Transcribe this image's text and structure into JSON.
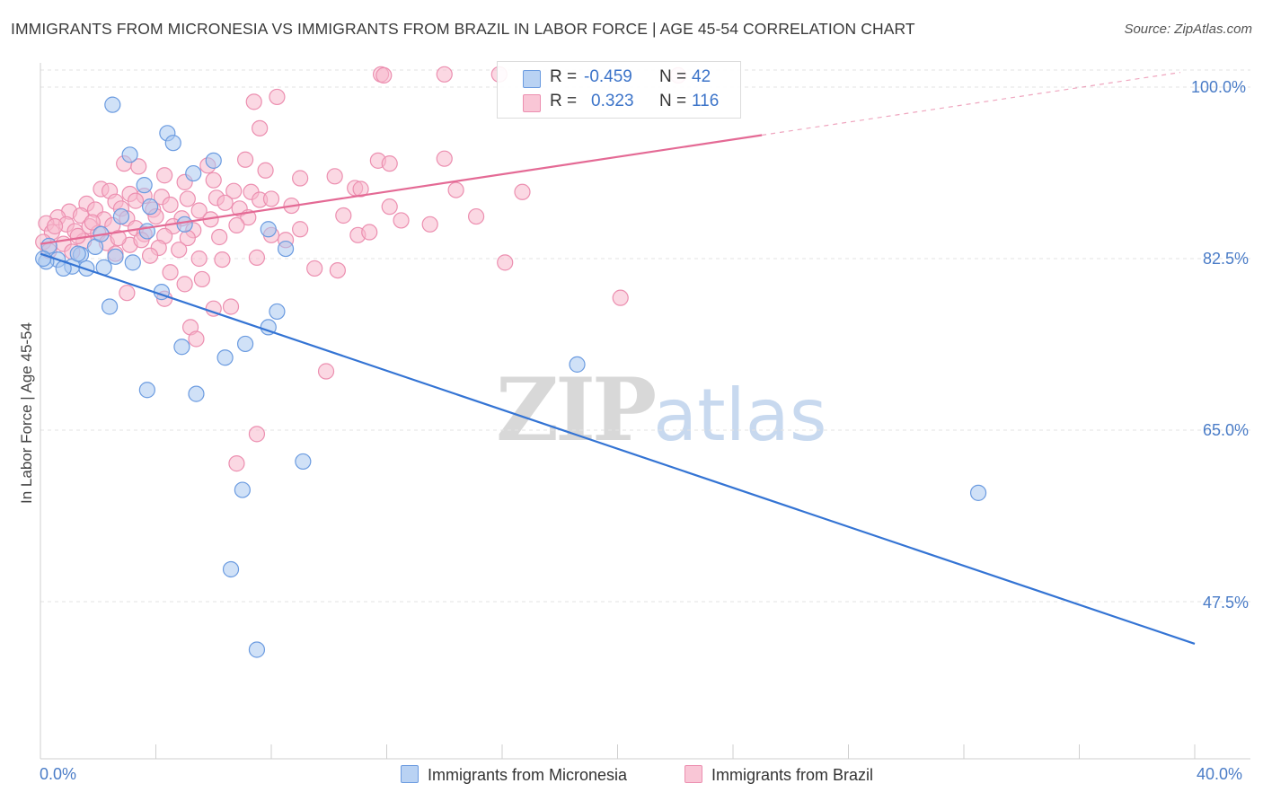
{
  "title": "IMMIGRANTS FROM MICRONESIA VS IMMIGRANTS FROM BRAZIL IN LABOR FORCE | AGE 45-54 CORRELATION CHART",
  "source": "Source: ZipAtlas.com",
  "watermark": {
    "zip": "ZIP",
    "atlas": "atlas"
  },
  "colors": {
    "micronesia_fill": "#aac8f0",
    "micronesia_stroke": "#6b9be0",
    "micronesia_line": "#3474d4",
    "brazil_fill": "#f7b8cc",
    "brazil_stroke": "#ec8fb0",
    "brazil_line": "#e46a95",
    "tick_label": "#4a7cc7",
    "grid": "#e3e3e3"
  },
  "legend_top": {
    "rows": [
      {
        "r_key": "R =",
        "r_value": "-0.459",
        "n_key": "N =",
        "n_value": "42"
      },
      {
        "r_key": "R =",
        "r_value": "0.323",
        "n_key": "N =",
        "n_value": "116"
      }
    ]
  },
  "chart_data": {
    "type": "scatter",
    "title": "IMMIGRANTS FROM MICRONESIA VS IMMIGRANTS FROM BRAZIL IN LABOR FORCE | AGE 45-54 CORRELATION CHART",
    "xlabel": "",
    "ylabel": "In Labor Force | Age 45-54",
    "xlim": [
      0,
      40
    ],
    "ylim": [
      32.5,
      102
    ],
    "x_tick_labels": [
      "0.0%",
      "40.0%"
    ],
    "y_ticks": [
      47.5,
      65.0,
      82.5,
      100.0
    ],
    "y_tick_labels": [
      "47.5%",
      "65.0%",
      "82.5%",
      "100.0%"
    ],
    "grid": true,
    "legend_position": "bottom",
    "series": [
      {
        "name": "Immigrants from Micronesia",
        "r": -0.459,
        "n": 42,
        "trend": {
          "x": [
            0,
            40
          ],
          "y": [
            83.0,
            43.2
          ],
          "dashed_x": null
        },
        "points": [
          [
            2.5,
            98.2
          ],
          [
            4.4,
            95.3
          ],
          [
            3.1,
            93.1
          ],
          [
            4.6,
            94.3
          ],
          [
            6.0,
            92.5
          ],
          [
            5.3,
            91.2
          ],
          [
            3.6,
            90.0
          ],
          [
            3.8,
            87.8
          ],
          [
            2.8,
            86.8
          ],
          [
            7.9,
            85.5
          ],
          [
            3.7,
            85.3
          ],
          [
            0.3,
            83.8
          ],
          [
            1.9,
            83.7
          ],
          [
            8.5,
            83.5
          ],
          [
            0.6,
            82.4
          ],
          [
            0.2,
            82.2
          ],
          [
            2.6,
            82.7
          ],
          [
            1.4,
            82.9
          ],
          [
            1.1,
            81.7
          ],
          [
            0.8,
            81.5
          ],
          [
            1.6,
            81.5
          ],
          [
            2.2,
            81.6
          ],
          [
            3.2,
            82.1
          ],
          [
            4.2,
            79.1
          ],
          [
            2.4,
            77.6
          ],
          [
            8.2,
            77.1
          ],
          [
            7.9,
            75.5
          ],
          [
            4.9,
            73.5
          ],
          [
            7.1,
            73.8
          ],
          [
            6.4,
            72.4
          ],
          [
            18.6,
            71.7
          ],
          [
            3.7,
            69.1
          ],
          [
            5.4,
            68.7
          ],
          [
            9.1,
            61.8
          ],
          [
            7.0,
            58.9
          ],
          [
            32.5,
            58.6
          ],
          [
            6.6,
            50.8
          ],
          [
            7.5,
            42.6
          ],
          [
            0.1,
            82.5
          ],
          [
            1.3,
            83.0
          ],
          [
            5.0,
            86.0
          ],
          [
            2.1,
            85.0
          ]
        ]
      },
      {
        "name": "Immigrants from Brazil",
        "r": 0.323,
        "n": 116,
        "trend": {
          "x": [
            0,
            25
          ],
          "y": [
            84.0,
            95.1
          ],
          "dashed_x": [
            25,
            39.5
          ],
          "dashed_y": [
            95.1,
            101.5
          ]
        },
        "points": [
          [
            11.8,
            101.3
          ],
          [
            11.9,
            101.2
          ],
          [
            14.0,
            101.3
          ],
          [
            15.9,
            101.3
          ],
          [
            22.1,
            101.2
          ],
          [
            8.2,
            99.0
          ],
          [
            7.4,
            98.5
          ],
          [
            7.6,
            95.8
          ],
          [
            11.7,
            92.5
          ],
          [
            14.0,
            92.7
          ],
          [
            12.1,
            92.2
          ],
          [
            7.1,
            92.6
          ],
          [
            2.9,
            92.2
          ],
          [
            5.8,
            92.0
          ],
          [
            3.4,
            91.9
          ],
          [
            7.8,
            91.5
          ],
          [
            4.3,
            91.0
          ],
          [
            9.0,
            90.7
          ],
          [
            10.2,
            90.9
          ],
          [
            5.0,
            90.3
          ],
          [
            6.0,
            90.5
          ],
          [
            2.1,
            89.6
          ],
          [
            2.4,
            89.4
          ],
          [
            6.7,
            89.4
          ],
          [
            7.3,
            89.3
          ],
          [
            10.9,
            89.7
          ],
          [
            11.1,
            89.6
          ],
          [
            14.4,
            89.5
          ],
          [
            16.7,
            89.3
          ],
          [
            3.1,
            89.1
          ],
          [
            3.6,
            88.9
          ],
          [
            4.2,
            88.8
          ],
          [
            5.1,
            88.6
          ],
          [
            6.1,
            88.7
          ],
          [
            7.6,
            88.5
          ],
          [
            8.0,
            88.6
          ],
          [
            1.6,
            88.1
          ],
          [
            2.6,
            88.3
          ],
          [
            3.3,
            88.4
          ],
          [
            4.5,
            88.0
          ],
          [
            6.4,
            88.2
          ],
          [
            8.7,
            87.9
          ],
          [
            12.1,
            87.8
          ],
          [
            1.0,
            87.3
          ],
          [
            1.9,
            87.5
          ],
          [
            2.8,
            87.6
          ],
          [
            3.9,
            87.5
          ],
          [
            5.5,
            87.4
          ],
          [
            6.9,
            87.6
          ],
          [
            0.6,
            86.7
          ],
          [
            1.4,
            86.9
          ],
          [
            2.2,
            86.5
          ],
          [
            3.0,
            86.6
          ],
          [
            4.0,
            86.8
          ],
          [
            4.9,
            86.6
          ],
          [
            5.9,
            86.5
          ],
          [
            7.2,
            86.7
          ],
          [
            0.2,
            86.1
          ],
          [
            0.9,
            86.0
          ],
          [
            1.7,
            85.8
          ],
          [
            2.5,
            85.9
          ],
          [
            3.3,
            85.6
          ],
          [
            4.6,
            85.8
          ],
          [
            5.3,
            85.4
          ],
          [
            0.4,
            85.2
          ],
          [
            1.2,
            85.3
          ],
          [
            2.0,
            85.1
          ],
          [
            3.6,
            85.0
          ],
          [
            4.3,
            84.8
          ],
          [
            5.1,
            84.6
          ],
          [
            6.2,
            84.7
          ],
          [
            8.5,
            84.4
          ],
          [
            11.0,
            84.9
          ],
          [
            0.1,
            84.2
          ],
          [
            0.8,
            84.0
          ],
          [
            1.5,
            84.3
          ],
          [
            2.3,
            84.1
          ],
          [
            3.1,
            83.9
          ],
          [
            4.1,
            83.6
          ],
          [
            4.8,
            83.4
          ],
          [
            0.3,
            83.3
          ],
          [
            1.1,
            83.2
          ],
          [
            2.6,
            83.0
          ],
          [
            3.8,
            82.8
          ],
          [
            5.5,
            82.5
          ],
          [
            6.3,
            82.4
          ],
          [
            7.5,
            82.6
          ],
          [
            9.5,
            81.5
          ],
          [
            10.3,
            81.3
          ],
          [
            16.1,
            82.1
          ],
          [
            4.5,
            81.1
          ],
          [
            5.6,
            80.4
          ],
          [
            3.0,
            79.0
          ],
          [
            4.3,
            78.4
          ],
          [
            5.0,
            79.9
          ],
          [
            6.6,
            77.6
          ],
          [
            6.0,
            77.4
          ],
          [
            20.1,
            78.5
          ],
          [
            5.2,
            75.5
          ],
          [
            5.4,
            74.3
          ],
          [
            9.9,
            71.0
          ],
          [
            7.5,
            64.6
          ],
          [
            6.8,
            61.6
          ],
          [
            11.4,
            85.2
          ],
          [
            12.5,
            86.4
          ],
          [
            10.5,
            86.9
          ],
          [
            13.5,
            86.0
          ],
          [
            15.1,
            86.8
          ],
          [
            0.5,
            85.8
          ],
          [
            1.8,
            86.2
          ],
          [
            2.7,
            84.6
          ],
          [
            3.5,
            84.4
          ],
          [
            6.8,
            85.9
          ],
          [
            8.0,
            84.9
          ],
          [
            9.0,
            85.5
          ],
          [
            1.3,
            84.8
          ]
        ]
      }
    ]
  },
  "legend_bottom": [
    {
      "label": "Immigrants from Micronesia"
    },
    {
      "label": "Immigrants from Brazil"
    }
  ]
}
